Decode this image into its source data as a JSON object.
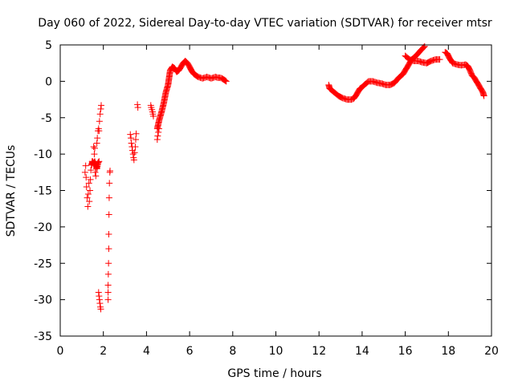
{
  "chart_data": {
    "type": "scatter",
    "title": "Day 060 of 2022, Sidereal Day-to-day VTEC variation (SDTVAR) for receiver mtsr",
    "xlabel": "GPS time / hours",
    "ylabel": "SDTVAR / TECUs",
    "xlim": [
      0,
      20
    ],
    "ylim": [
      -35,
      5
    ],
    "xticks": [
      0,
      2,
      4,
      6,
      8,
      10,
      12,
      14,
      16,
      18,
      20
    ],
    "yticks": [
      5,
      0,
      -5,
      -10,
      -15,
      -20,
      -25,
      -30,
      -35
    ],
    "marker": "+",
    "grid": false,
    "colors": {
      "series": "#ff0000",
      "axes": "#000000"
    },
    "series": [
      {
        "name": "SDTVAR",
        "segments": [
          {
            "kind": "points",
            "x": [
              1.15,
              1.18,
              1.2,
              1.22,
              1.25,
              1.28,
              1.3,
              1.33,
              1.35,
              1.38,
              1.4,
              1.42,
              1.45,
              1.48
            ],
            "y": [
              -12.5,
              -11.6,
              -13.2,
              -14.5,
              -16.0,
              -17.2,
              -15.5,
              -14.0,
              -16.5,
              -15.0,
              -13.5,
              -12.2,
              -11.5,
              -11.0
            ]
          },
          {
            "kind": "path",
            "x": [
              1.45,
              1.5,
              1.55,
              1.6,
              1.65,
              1.7,
              1.75,
              1.8
            ],
            "y": [
              -11.5,
              -11.0,
              -11.3,
              -11.0,
              -11.5,
              -12.0,
              -11.2,
              -11.0
            ]
          },
          {
            "kind": "points",
            "x": [
              1.55,
              1.58,
              1.6,
              1.62,
              1.65,
              1.68,
              1.7,
              1.72,
              1.75,
              1.78,
              1.8,
              1.82,
              1.85,
              1.88,
              1.9
            ],
            "y": [
              -9.0,
              -10.0,
              -9.2,
              -12.5,
              -13.0,
              -12.0,
              -8.5,
              -7.8,
              -6.8,
              -6.5,
              -6.8,
              -5.5,
              -4.5,
              -3.8,
              -3.3
            ]
          },
          {
            "kind": "points",
            "x": [
              1.78,
              1.8,
              1.82,
              1.84,
              1.86,
              1.88
            ],
            "y": [
              -29.0,
              -29.5,
              -30.0,
              -30.5,
              -31.0,
              -31.3
            ]
          },
          {
            "kind": "points",
            "x": [
              2.22,
              2.22,
              2.22,
              2.23,
              2.24,
              2.25,
              2.25,
              2.26,
              2.27,
              2.28,
              2.3,
              2.31
            ],
            "y": [
              -30.0,
              -29.0,
              -28.0,
              -26.5,
              -25.0,
              -23.0,
              -21.0,
              -18.3,
              -16.0,
              -14.0,
              -12.5,
              -12.3
            ]
          },
          {
            "kind": "points",
            "x": [
              3.25,
              3.28,
              3.3,
              3.33,
              3.35,
              3.38,
              3.4,
              3.42,
              3.45,
              3.48,
              3.5,
              3.52
            ],
            "y": [
              -7.3,
              -7.8,
              -8.5,
              -9.0,
              -9.5,
              -10.0,
              -10.5,
              -10.8,
              -9.8,
              -9.0,
              -8.0,
              -7.2
            ]
          },
          {
            "kind": "points",
            "x": [
              3.58,
              3.6
            ],
            "y": [
              -3.2,
              -3.6
            ]
          },
          {
            "kind": "points",
            "x": [
              4.2,
              4.22,
              4.25,
              4.28,
              4.3,
              4.32
            ],
            "y": [
              -3.3,
              -3.6,
              -3.9,
              -4.2,
              -4.5,
              -4.8
            ]
          },
          {
            "kind": "path",
            "x": [
              4.5,
              4.6,
              4.7,
              4.8,
              4.9,
              5.0,
              5.05,
              5.1,
              5.2,
              5.3,
              5.4,
              5.5,
              5.6,
              5.7,
              5.8,
              5.9,
              6.0,
              6.1,
              6.2,
              6.3,
              6.4,
              6.5,
              6.6,
              6.7,
              6.8,
              6.9,
              7.0,
              7.1,
              7.2,
              7.3,
              7.4,
              7.5,
              7.6,
              7.7
            ],
            "y": [
              -6.5,
              -5.2,
              -4.2,
              -3.0,
              -1.5,
              -0.5,
              0.5,
              1.5,
              2.0,
              1.8,
              1.3,
              1.5,
              2.0,
              2.5,
              2.8,
              2.5,
              2.0,
              1.4,
              1.0,
              0.8,
              0.6,
              0.5,
              0.4,
              0.5,
              0.6,
              0.5,
              0.4,
              0.5,
              0.6,
              0.5,
              0.5,
              0.4,
              0.2,
              0.0
            ]
          },
          {
            "kind": "points",
            "x": [
              4.5,
              4.52,
              4.55,
              4.58
            ],
            "y": [
              -8.0,
              -7.5,
              -7.0,
              -6.5
            ]
          },
          {
            "kind": "path",
            "x": [
              12.45,
              12.5,
              12.7,
              12.9,
              13.1,
              13.3,
              13.5,
              13.6,
              13.7,
              13.8,
              13.9,
              14.0,
              14.1,
              14.3,
              14.5,
              14.7,
              14.9,
              15.1,
              15.3,
              15.5,
              15.7,
              15.9,
              16.1,
              16.3,
              16.5,
              16.7,
              16.9
            ],
            "y": [
              -0.5,
              -1.0,
              -1.5,
              -2.0,
              -2.3,
              -2.5,
              -2.5,
              -2.4,
              -2.0,
              -1.5,
              -1.0,
              -0.8,
              -0.5,
              0.0,
              0.0,
              -0.2,
              -0.3,
              -0.5,
              -0.5,
              -0.2,
              0.5,
              1.0,
              2.0,
              3.0,
              3.5,
              4.2,
              4.8
            ]
          },
          {
            "kind": "path",
            "x": [
              16.0,
              16.2,
              16.4,
              16.6,
              16.8,
              17.0,
              17.2,
              17.4,
              17.6
            ],
            "y": [
              3.5,
              3.0,
              2.8,
              2.8,
              2.6,
              2.5,
              2.8,
              3.0,
              3.0
            ]
          },
          {
            "kind": "path",
            "x": [
              17.85,
              17.95,
              18.05,
              18.2,
              18.4,
              18.6,
              18.8,
              18.9,
              19.0,
              19.1,
              19.2,
              19.3,
              19.4,
              19.5,
              19.6,
              19.65
            ],
            "y": [
              4.0,
              3.8,
              3.2,
              2.5,
              2.3,
              2.2,
              2.3,
              2.1,
              1.5,
              0.8,
              0.5,
              0.0,
              -0.5,
              -1.0,
              -1.5,
              -2.0
            ]
          }
        ]
      }
    ]
  }
}
